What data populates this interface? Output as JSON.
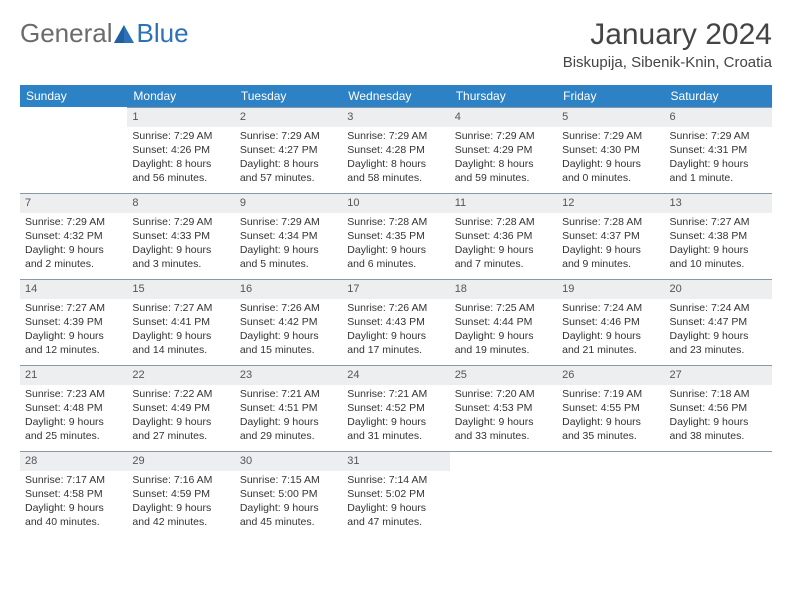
{
  "brand": {
    "part1": "General",
    "part2": "Blue"
  },
  "header": {
    "title": "January 2024",
    "location": "Biskupija, Sibenik-Knin, Croatia"
  },
  "colors": {
    "header_bg": "#2d82c6",
    "header_fg": "#ffffff",
    "daynum_bg": "#eceef0",
    "divider": "#8a98a6",
    "brand_gray": "#6b6b6b",
    "brand_blue": "#2d71b8",
    "text": "#333333",
    "background": "#ffffff"
  },
  "weekdays": [
    "Sunday",
    "Monday",
    "Tuesday",
    "Wednesday",
    "Thursday",
    "Friday",
    "Saturday"
  ],
  "weeks": [
    [
      {
        "blank": true
      },
      {
        "day": "1",
        "sunrise": "Sunrise: 7:29 AM",
        "sunset": "Sunset: 4:26 PM",
        "dl1": "Daylight: 8 hours",
        "dl2": "and 56 minutes."
      },
      {
        "day": "2",
        "sunrise": "Sunrise: 7:29 AM",
        "sunset": "Sunset: 4:27 PM",
        "dl1": "Daylight: 8 hours",
        "dl2": "and 57 minutes."
      },
      {
        "day": "3",
        "sunrise": "Sunrise: 7:29 AM",
        "sunset": "Sunset: 4:28 PM",
        "dl1": "Daylight: 8 hours",
        "dl2": "and 58 minutes."
      },
      {
        "day": "4",
        "sunrise": "Sunrise: 7:29 AM",
        "sunset": "Sunset: 4:29 PM",
        "dl1": "Daylight: 8 hours",
        "dl2": "and 59 minutes."
      },
      {
        "day": "5",
        "sunrise": "Sunrise: 7:29 AM",
        "sunset": "Sunset: 4:30 PM",
        "dl1": "Daylight: 9 hours",
        "dl2": "and 0 minutes."
      },
      {
        "day": "6",
        "sunrise": "Sunrise: 7:29 AM",
        "sunset": "Sunset: 4:31 PM",
        "dl1": "Daylight: 9 hours",
        "dl2": "and 1 minute."
      }
    ],
    [
      {
        "day": "7",
        "sunrise": "Sunrise: 7:29 AM",
        "sunset": "Sunset: 4:32 PM",
        "dl1": "Daylight: 9 hours",
        "dl2": "and 2 minutes."
      },
      {
        "day": "8",
        "sunrise": "Sunrise: 7:29 AM",
        "sunset": "Sunset: 4:33 PM",
        "dl1": "Daylight: 9 hours",
        "dl2": "and 3 minutes."
      },
      {
        "day": "9",
        "sunrise": "Sunrise: 7:29 AM",
        "sunset": "Sunset: 4:34 PM",
        "dl1": "Daylight: 9 hours",
        "dl2": "and 5 minutes."
      },
      {
        "day": "10",
        "sunrise": "Sunrise: 7:28 AM",
        "sunset": "Sunset: 4:35 PM",
        "dl1": "Daylight: 9 hours",
        "dl2": "and 6 minutes."
      },
      {
        "day": "11",
        "sunrise": "Sunrise: 7:28 AM",
        "sunset": "Sunset: 4:36 PM",
        "dl1": "Daylight: 9 hours",
        "dl2": "and 7 minutes."
      },
      {
        "day": "12",
        "sunrise": "Sunrise: 7:28 AM",
        "sunset": "Sunset: 4:37 PM",
        "dl1": "Daylight: 9 hours",
        "dl2": "and 9 minutes."
      },
      {
        "day": "13",
        "sunrise": "Sunrise: 7:27 AM",
        "sunset": "Sunset: 4:38 PM",
        "dl1": "Daylight: 9 hours",
        "dl2": "and 10 minutes."
      }
    ],
    [
      {
        "day": "14",
        "sunrise": "Sunrise: 7:27 AM",
        "sunset": "Sunset: 4:39 PM",
        "dl1": "Daylight: 9 hours",
        "dl2": "and 12 minutes."
      },
      {
        "day": "15",
        "sunrise": "Sunrise: 7:27 AM",
        "sunset": "Sunset: 4:41 PM",
        "dl1": "Daylight: 9 hours",
        "dl2": "and 14 minutes."
      },
      {
        "day": "16",
        "sunrise": "Sunrise: 7:26 AM",
        "sunset": "Sunset: 4:42 PM",
        "dl1": "Daylight: 9 hours",
        "dl2": "and 15 minutes."
      },
      {
        "day": "17",
        "sunrise": "Sunrise: 7:26 AM",
        "sunset": "Sunset: 4:43 PM",
        "dl1": "Daylight: 9 hours",
        "dl2": "and 17 minutes."
      },
      {
        "day": "18",
        "sunrise": "Sunrise: 7:25 AM",
        "sunset": "Sunset: 4:44 PM",
        "dl1": "Daylight: 9 hours",
        "dl2": "and 19 minutes."
      },
      {
        "day": "19",
        "sunrise": "Sunrise: 7:24 AM",
        "sunset": "Sunset: 4:46 PM",
        "dl1": "Daylight: 9 hours",
        "dl2": "and 21 minutes."
      },
      {
        "day": "20",
        "sunrise": "Sunrise: 7:24 AM",
        "sunset": "Sunset: 4:47 PM",
        "dl1": "Daylight: 9 hours",
        "dl2": "and 23 minutes."
      }
    ],
    [
      {
        "day": "21",
        "sunrise": "Sunrise: 7:23 AM",
        "sunset": "Sunset: 4:48 PM",
        "dl1": "Daylight: 9 hours",
        "dl2": "and 25 minutes."
      },
      {
        "day": "22",
        "sunrise": "Sunrise: 7:22 AM",
        "sunset": "Sunset: 4:49 PM",
        "dl1": "Daylight: 9 hours",
        "dl2": "and 27 minutes."
      },
      {
        "day": "23",
        "sunrise": "Sunrise: 7:21 AM",
        "sunset": "Sunset: 4:51 PM",
        "dl1": "Daylight: 9 hours",
        "dl2": "and 29 minutes."
      },
      {
        "day": "24",
        "sunrise": "Sunrise: 7:21 AM",
        "sunset": "Sunset: 4:52 PM",
        "dl1": "Daylight: 9 hours",
        "dl2": "and 31 minutes."
      },
      {
        "day": "25",
        "sunrise": "Sunrise: 7:20 AM",
        "sunset": "Sunset: 4:53 PM",
        "dl1": "Daylight: 9 hours",
        "dl2": "and 33 minutes."
      },
      {
        "day": "26",
        "sunrise": "Sunrise: 7:19 AM",
        "sunset": "Sunset: 4:55 PM",
        "dl1": "Daylight: 9 hours",
        "dl2": "and 35 minutes."
      },
      {
        "day": "27",
        "sunrise": "Sunrise: 7:18 AM",
        "sunset": "Sunset: 4:56 PM",
        "dl1": "Daylight: 9 hours",
        "dl2": "and 38 minutes."
      }
    ],
    [
      {
        "day": "28",
        "sunrise": "Sunrise: 7:17 AM",
        "sunset": "Sunset: 4:58 PM",
        "dl1": "Daylight: 9 hours",
        "dl2": "and 40 minutes."
      },
      {
        "day": "29",
        "sunrise": "Sunrise: 7:16 AM",
        "sunset": "Sunset: 4:59 PM",
        "dl1": "Daylight: 9 hours",
        "dl2": "and 42 minutes."
      },
      {
        "day": "30",
        "sunrise": "Sunrise: 7:15 AM",
        "sunset": "Sunset: 5:00 PM",
        "dl1": "Daylight: 9 hours",
        "dl2": "and 45 minutes."
      },
      {
        "day": "31",
        "sunrise": "Sunrise: 7:14 AM",
        "sunset": "Sunset: 5:02 PM",
        "dl1": "Daylight: 9 hours",
        "dl2": "and 47 minutes."
      },
      {
        "blank": true,
        "trailing": true
      },
      {
        "blank": true,
        "trailing": true
      },
      {
        "blank": true,
        "trailing": true
      }
    ]
  ]
}
